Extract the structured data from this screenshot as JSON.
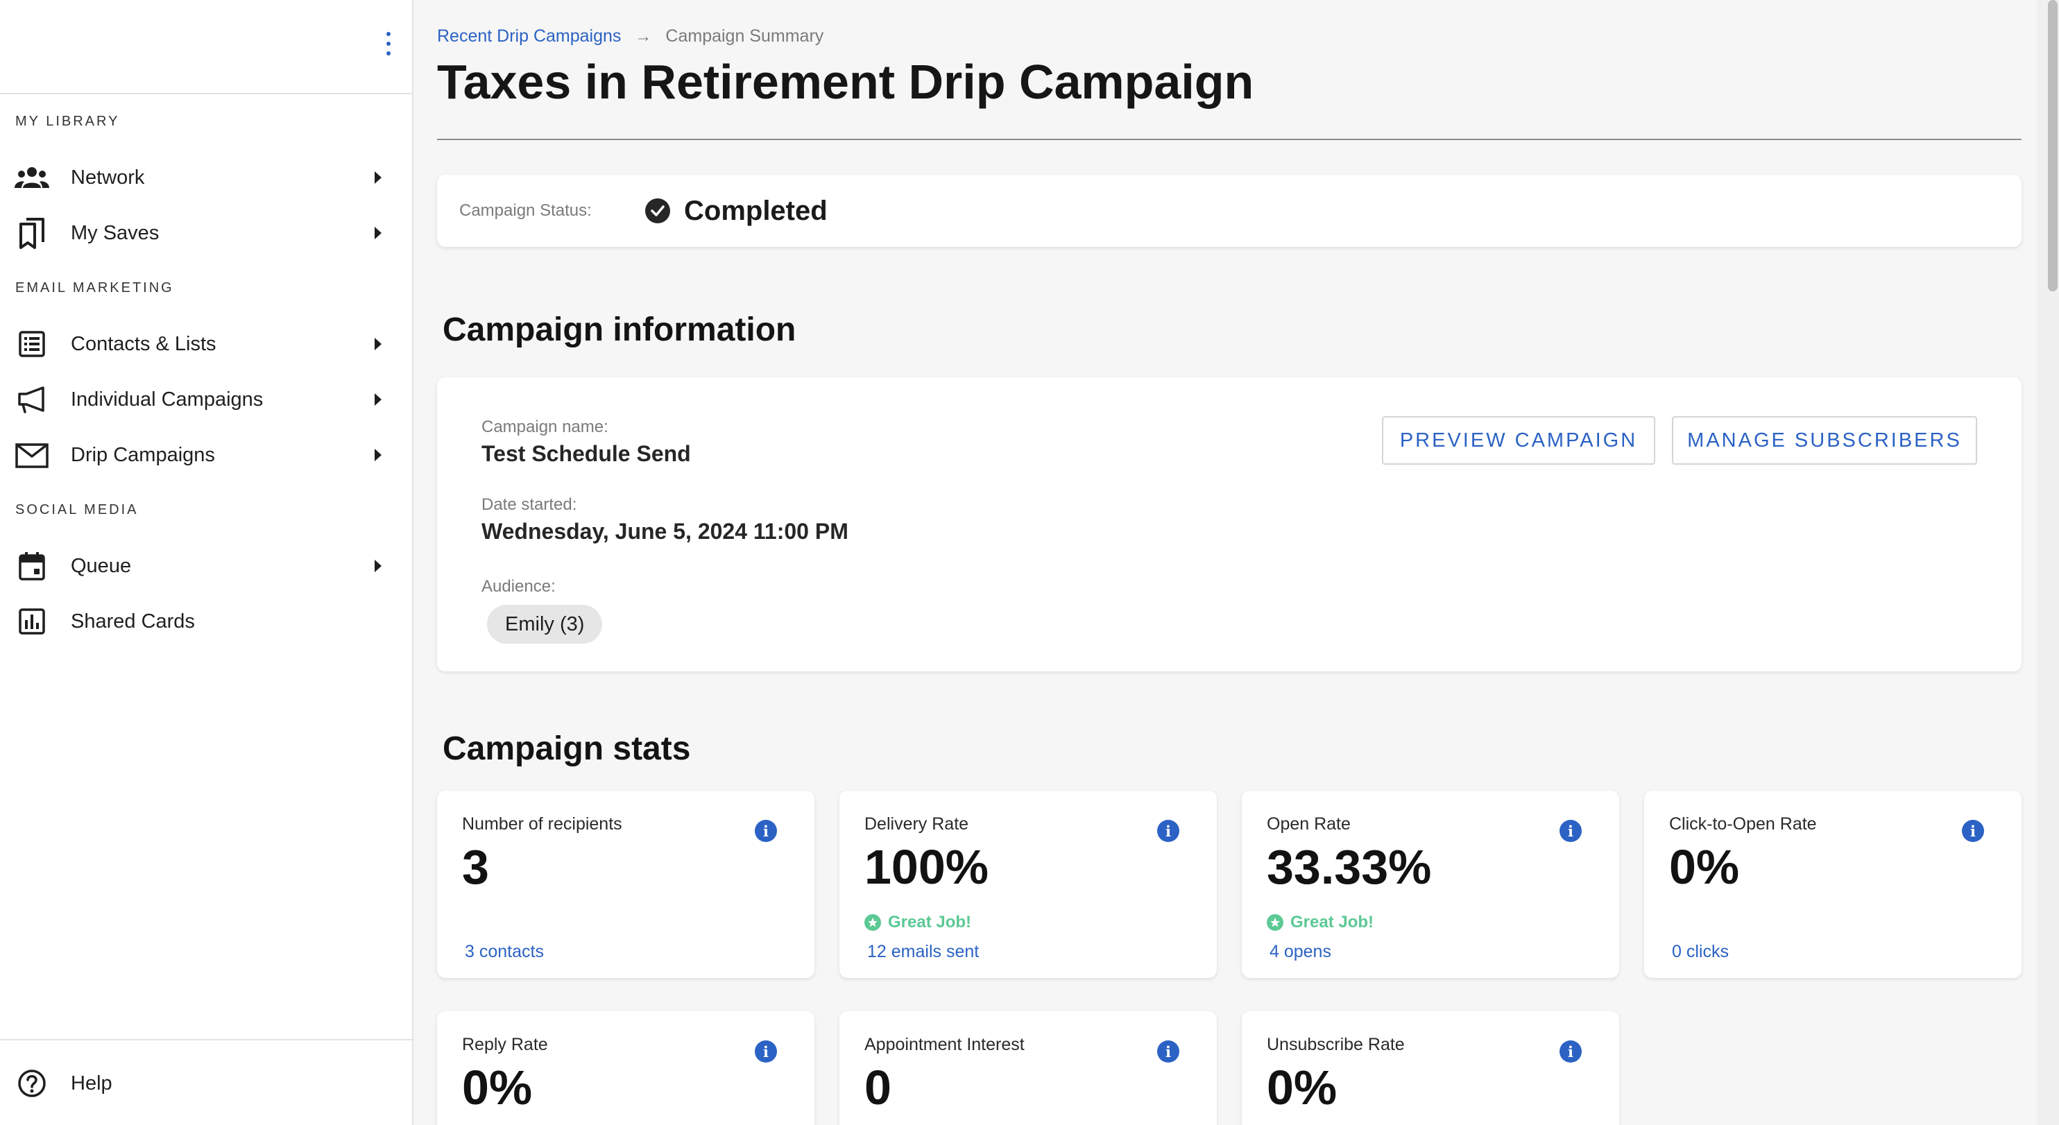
{
  "sidebar": {
    "sections": [
      {
        "heading": "MY LIBRARY"
      },
      {
        "heading": "EMAIL MARKETING"
      },
      {
        "heading": "SOCIAL MEDIA"
      }
    ],
    "items": [
      {
        "label": "Network",
        "icon": "people-icon",
        "expandable": true
      },
      {
        "label": "My Saves",
        "icon": "bookmarks-icon",
        "expandable": true
      },
      {
        "label": "Contacts & Lists",
        "icon": "list-icon",
        "expandable": true
      },
      {
        "label": "Individual Campaigns",
        "icon": "megaphone-icon",
        "expandable": true
      },
      {
        "label": "Drip Campaigns",
        "icon": "mail-icon",
        "expandable": true
      },
      {
        "label": "Queue",
        "icon": "calendar-icon",
        "expandable": true
      },
      {
        "label": "Shared Cards",
        "icon": "bar-chart-icon",
        "expandable": false
      }
    ],
    "help_label": "Help"
  },
  "breadcrumb": {
    "parent": "Recent Drip Campaigns",
    "separator": "→",
    "current": "Campaign Summary"
  },
  "page": {
    "title": "Taxes in Retirement Drip Campaign"
  },
  "status": {
    "label": "Campaign Status:",
    "value": "Completed"
  },
  "campaign_info": {
    "section_title": "Campaign information",
    "name_label": "Campaign name:",
    "name_value": "Test Schedule Send",
    "date_label": "Date started:",
    "date_value": "Wednesday, June 5, 2024 11:00 PM",
    "audience_label": "Audience:",
    "audience_chip": "Emily (3)",
    "preview_button": "PREVIEW CAMPAIGN",
    "manage_button": "MANAGE SUBSCRIBERS"
  },
  "stats": {
    "section_title": "Campaign stats",
    "cards": [
      {
        "label": "Number of recipients",
        "value": "3",
        "praise": "",
        "link": "3 contacts"
      },
      {
        "label": "Delivery Rate",
        "value": "100%",
        "praise": "Great Job!",
        "link": "12 emails sent"
      },
      {
        "label": "Open Rate",
        "value": "33.33%",
        "praise": "Great Job!",
        "link": "4 opens"
      },
      {
        "label": "Click-to-Open Rate",
        "value": "0%",
        "praise": "",
        "link": "0 clicks"
      },
      {
        "label": "Reply Rate",
        "value": "0%"
      },
      {
        "label": "Appointment Interest",
        "value": "0"
      },
      {
        "label": "Unsubscribe Rate",
        "value": "0%"
      }
    ],
    "info_glyph": "i"
  },
  "colors": {
    "accent": "#2b62c4",
    "success": "#5cc995",
    "background": "#f6f6f6"
  }
}
